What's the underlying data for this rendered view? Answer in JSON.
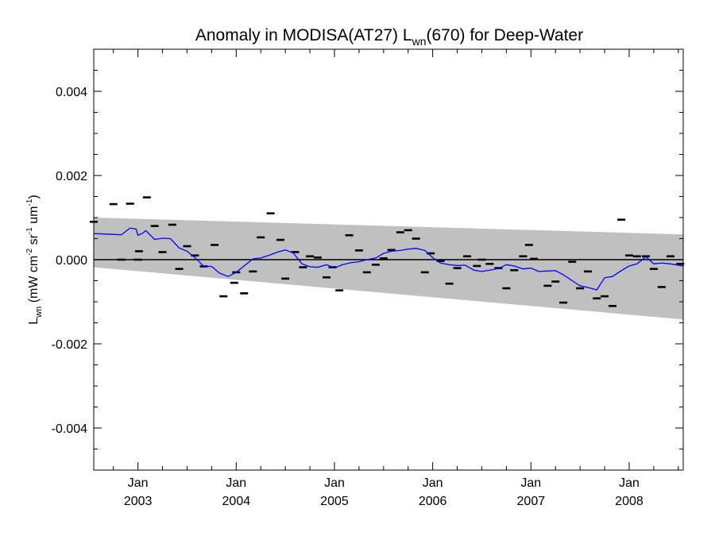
{
  "chart_data": {
    "type": "scatter",
    "title": {
      "main": "Anomaly in MODISA(AT27) L",
      "sub": "wn",
      "rest": "(670) for Deep-Water"
    },
    "ylabel": {
      "main": "L",
      "sub": "wn",
      "units_open": " (mW cm",
      "sup1": "-2",
      "units_mid": " sr",
      "sup2": "-1",
      "units_end": " um",
      "sup3": "-1",
      "units_close": ")"
    },
    "xlim": [
      2002.55,
      2008.55
    ],
    "ylim": [
      -0.005,
      0.005
    ],
    "yticks": [
      {
        "value": 0.004,
        "label": "0.004"
      },
      {
        "value": 0.002,
        "label": "0.002"
      },
      {
        "value": 0.0,
        "label": "0.000"
      },
      {
        "value": -0.002,
        "label": "-0.002"
      },
      {
        "value": -0.004,
        "label": "-0.004"
      }
    ],
    "xticks": [
      {
        "value": 2003.0,
        "month": "Jan",
        "year": "2003"
      },
      {
        "value": 2004.0,
        "month": "Jan",
        "year": "2004"
      },
      {
        "value": 2005.0,
        "month": "Jan",
        "year": "2005"
      },
      {
        "value": 2006.0,
        "month": "Jan",
        "year": "2006"
      },
      {
        "value": 2007.0,
        "month": "Jan",
        "year": "2007"
      },
      {
        "value": 2008.0,
        "month": "Jan",
        "year": "2008"
      }
    ],
    "band": {
      "upper": [
        [
          2002.55,
          0.001
        ],
        [
          2008.55,
          0.0006
        ]
      ],
      "lower": [
        [
          2002.55,
          -0.00018
        ],
        [
          2008.55,
          -0.00142
        ]
      ]
    },
    "reference_line": 0.0,
    "series": [
      {
        "kind": "points",
        "points": [
          [
            2002.55,
            0.0009
          ],
          [
            2002.75,
            0.00132
          ],
          [
            2002.83,
            0.0
          ],
          [
            2002.92,
            0.00133
          ],
          [
            2003.0,
            0.0
          ],
          [
            2003.01,
            0.0002
          ],
          [
            2003.09,
            0.00148
          ],
          [
            2003.17,
            0.0008
          ],
          [
            2003.25,
            0.00018
          ],
          [
            2003.35,
            0.00083
          ],
          [
            2003.42,
            -0.00022
          ],
          [
            2003.5,
            0.00032
          ],
          [
            2003.58,
            0.0001
          ],
          [
            2003.67,
            -0.00016
          ],
          [
            2003.78,
            0.00035
          ],
          [
            2003.87,
            -0.00087
          ],
          [
            2003.98,
            -0.00055
          ],
          [
            2004.0,
            -0.0003
          ],
          [
            2004.08,
            -0.0008
          ],
          [
            2004.17,
            -0.00028
          ],
          [
            2004.25,
            0.00053
          ],
          [
            2004.35,
            0.0011
          ],
          [
            2004.45,
            0.00047
          ],
          [
            2004.5,
            -0.00045
          ],
          [
            2004.6,
            0.00018
          ],
          [
            2004.68,
            -0.00018
          ],
          [
            2004.75,
            8e-05
          ],
          [
            2004.83,
            5e-05
          ],
          [
            2004.92,
            -0.00042
          ],
          [
            2004.98,
            -0.00018
          ],
          [
            2005.05,
            -0.00073
          ],
          [
            2005.15,
            0.00058
          ],
          [
            2005.25,
            0.00022
          ],
          [
            2005.33,
            -0.0003
          ],
          [
            2005.42,
            -0.00012
          ],
          [
            2005.5,
            3e-05
          ],
          [
            2005.58,
            0.00023
          ],
          [
            2005.67,
            0.00065
          ],
          [
            2005.75,
            0.0007
          ],
          [
            2005.83,
            0.0005
          ],
          [
            2005.92,
            -0.0003
          ],
          [
            2005.98,
            0.00015
          ],
          [
            2006.08,
            -3e-05
          ],
          [
            2006.17,
            -0.00057
          ],
          [
            2006.25,
            -0.0002
          ],
          [
            2006.35,
            8e-05
          ],
          [
            2006.45,
            -0.00015
          ],
          [
            2006.5,
            0.0
          ],
          [
            2006.58,
            -0.0001
          ],
          [
            2006.67,
            -0.0002
          ],
          [
            2006.75,
            -0.00068
          ],
          [
            2006.83,
            -0.00025
          ],
          [
            2006.92,
            8e-05
          ],
          [
            2006.98,
            0.00035
          ],
          [
            2007.03,
            2e-05
          ],
          [
            2007.17,
            -0.00062
          ],
          [
            2007.25,
            -0.00052
          ],
          [
            2007.33,
            -0.00102
          ],
          [
            2007.42,
            -5e-05
          ],
          [
            2007.5,
            -0.00068
          ],
          [
            2007.58,
            -0.00028
          ],
          [
            2007.67,
            -0.00092
          ],
          [
            2007.75,
            -0.00087
          ],
          [
            2007.83,
            -0.0011
          ],
          [
            2007.92,
            0.00095
          ],
          [
            2008.0,
            0.0001
          ],
          [
            2008.08,
            8e-05
          ],
          [
            2008.17,
            8e-05
          ],
          [
            2008.25,
            -0.00022
          ],
          [
            2008.33,
            -0.00065
          ],
          [
            2008.42,
            8e-05
          ],
          [
            2008.52,
            -0.0001
          ]
        ]
      },
      {
        "kind": "line",
        "color": "#0000ff",
        "points": [
          [
            2002.55,
            0.00062
          ],
          [
            2002.65,
            0.00061
          ],
          [
            2002.75,
            0.0006
          ],
          [
            2002.83,
            0.00059
          ],
          [
            2002.92,
            0.00075
          ],
          [
            2002.98,
            0.00073
          ],
          [
            2003.0,
            0.00058
          ],
          [
            2003.05,
            0.00063
          ],
          [
            2003.08,
            0.00069
          ],
          [
            2003.17,
            0.00048
          ],
          [
            2003.25,
            0.00051
          ],
          [
            2003.33,
            0.0005
          ],
          [
            2003.42,
            0.00028
          ],
          [
            2003.5,
            0.0002
          ],
          [
            2003.58,
            5e-05
          ],
          [
            2003.67,
            -0.00016
          ],
          [
            2003.75,
            -0.00016
          ],
          [
            2003.83,
            -0.00032
          ],
          [
            2003.92,
            -0.0004
          ],
          [
            2004.0,
            -0.0003
          ],
          [
            2004.08,
            -0.00015
          ],
          [
            2004.17,
            2e-05
          ],
          [
            2004.25,
            4e-05
          ],
          [
            2004.33,
            0.0001
          ],
          [
            2004.42,
            0.00018
          ],
          [
            2004.5,
            0.00023
          ],
          [
            2004.58,
            0.00016
          ],
          [
            2004.67,
            -0.0001
          ],
          [
            2004.75,
            -0.00017
          ],
          [
            2004.83,
            -0.00018
          ],
          [
            2004.92,
            -0.00012
          ],
          [
            2005.0,
            -0.0002
          ],
          [
            2005.08,
            -0.00012
          ],
          [
            2005.17,
            -7e-05
          ],
          [
            2005.25,
            -5e-05
          ],
          [
            2005.33,
            0.0
          ],
          [
            2005.42,
            4e-05
          ],
          [
            2005.5,
            0.00015
          ],
          [
            2005.58,
            0.0002
          ],
          [
            2005.67,
            0.00022
          ],
          [
            2005.75,
            0.00025
          ],
          [
            2005.83,
            0.00027
          ],
          [
            2005.92,
            0.00022
          ],
          [
            2006.0,
            5e-05
          ],
          [
            2006.08,
            -8e-05
          ],
          [
            2006.17,
            -0.00012
          ],
          [
            2006.25,
            -0.00014
          ],
          [
            2006.33,
            -0.00013
          ],
          [
            2006.42,
            -0.00025
          ],
          [
            2006.5,
            -0.00028
          ],
          [
            2006.58,
            -0.00025
          ],
          [
            2006.67,
            -0.00021
          ],
          [
            2006.75,
            -0.00012
          ],
          [
            2006.83,
            -0.00015
          ],
          [
            2006.92,
            -0.00022
          ],
          [
            2007.0,
            -0.0002
          ],
          [
            2007.08,
            -0.00028
          ],
          [
            2007.17,
            -0.00027
          ],
          [
            2007.25,
            -0.00026
          ],
          [
            2007.33,
            -0.00036
          ],
          [
            2007.42,
            -0.0005
          ],
          [
            2007.5,
            -0.00062
          ],
          [
            2007.58,
            -0.00066
          ],
          [
            2007.67,
            -0.00072
          ],
          [
            2007.75,
            -0.00043
          ],
          [
            2007.83,
            -0.0004
          ],
          [
            2007.92,
            -0.00026
          ],
          [
            2008.0,
            -0.00015
          ],
          [
            2008.08,
            -0.0001
          ],
          [
            2008.17,
            7e-05
          ],
          [
            2008.25,
            -0.0001
          ],
          [
            2008.33,
            -8e-05
          ],
          [
            2008.42,
            -0.0001
          ],
          [
            2008.55,
            -0.00015
          ]
        ]
      }
    ],
    "colors": {
      "band": "#c0c0c0",
      "line": "#0000ff",
      "points": "#000000",
      "axes": "#000000",
      "reference_line": "#000000"
    },
    "grid": false,
    "legend": "none"
  }
}
